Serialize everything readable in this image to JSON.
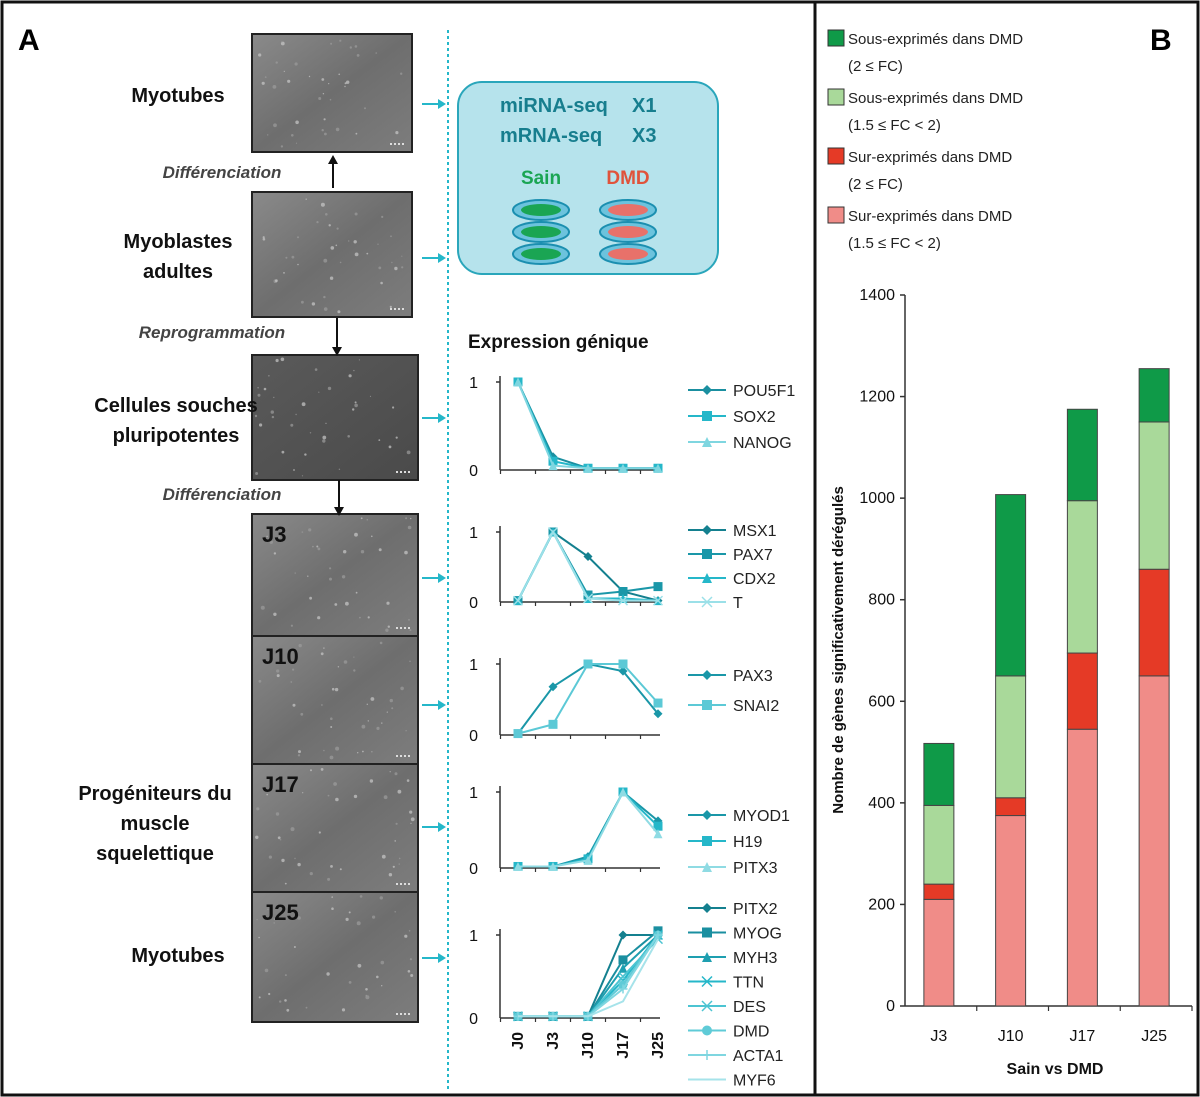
{
  "panel_a": {
    "letter": "A",
    "stages": [
      {
        "label": [
          "Myotubes"
        ],
        "tag": ""
      },
      {
        "label": [
          "Myoblastes",
          "adultes"
        ],
        "tag": ""
      },
      {
        "label": [
          "Cellules souches",
          "pluripotentes"
        ],
        "tag": ""
      },
      {
        "label": [],
        "tag": "J3"
      },
      {
        "label": [],
        "tag": "J10"
      },
      {
        "label": [
          "Progéniteurs du",
          "muscle",
          "squelettique"
        ],
        "tag": "J17"
      },
      {
        "label": [
          "Myotubes"
        ],
        "tag": "J25"
      }
    ],
    "transitions": [
      "Différenciation",
      "Reprogrammation",
      "Différenciation"
    ],
    "seq_box": {
      "line1_label": "miRNA-seq",
      "line1_mult": "X1",
      "line2_label": "mRNA-seq",
      "line2_mult": "X3",
      "sain": "Sain",
      "dmd": "DMD"
    },
    "expression_title": "Expression génique",
    "x_ticks": [
      "J0",
      "J3",
      "J10",
      "J17",
      "J25"
    ],
    "y_ticks": [
      "0",
      "1"
    ],
    "colors": {
      "teal_dark": "#1a8fa0",
      "teal": "#25b7c9",
      "teal_light": "#7fd6e0",
      "box_fill": "#b6e3ec",
      "box_stroke": "#2aa6bb",
      "sain": "#1aa553",
      "dmd": "#e0533b"
    }
  },
  "panel_b": {
    "letter": "B",
    "legend": [
      {
        "line1": "Sous-exprimés dans DMD",
        "line2": "(2 ≤ FC)",
        "color": "#0f9a48"
      },
      {
        "line1": "Sous-exprimés dans DMD",
        "line2": "(1.5 ≤ FC < 2)",
        "color": "#a9d99a"
      },
      {
        "line1": "Sur-exprimés dans DMD",
        "line2": "(2 ≤ FC)",
        "color": "#e53a26"
      },
      {
        "line1": "Sur-exprimés dans DMD",
        "line2": "(1.5 ≤ FC < 2)",
        "color": "#f08c88"
      }
    ]
  },
  "chart_data": [
    {
      "type": "line",
      "title": "",
      "x": [
        "J0",
        "J3",
        "J10",
        "J17",
        "J25"
      ],
      "ylim": [
        0,
        1
      ],
      "series": [
        {
          "name": "POU5F1",
          "values": [
            1,
            0.15,
            0.02,
            0.02,
            0.02
          ]
        },
        {
          "name": "SOX2",
          "values": [
            1,
            0.1,
            0.02,
            0.02,
            0.02
          ]
        },
        {
          "name": "NANOG",
          "values": [
            1,
            0.05,
            0.02,
            0.02,
            0.02
          ]
        }
      ]
    },
    {
      "type": "line",
      "title": "",
      "x": [
        "J0",
        "J3",
        "J10",
        "J17",
        "J25"
      ],
      "ylim": [
        0,
        1
      ],
      "series": [
        {
          "name": "MSX1",
          "values": [
            0.02,
            1,
            0.65,
            0.15,
            0.02
          ]
        },
        {
          "name": "PAX7",
          "values": [
            0.02,
            1,
            0.1,
            0.15,
            0.22
          ]
        },
        {
          "name": "CDX2",
          "values": [
            0.02,
            1,
            0.05,
            0.05,
            0.02
          ]
        },
        {
          "name": "T",
          "values": [
            0.02,
            1,
            0.05,
            0.02,
            0.02
          ]
        }
      ]
    },
    {
      "type": "line",
      "title": "",
      "x": [
        "J0",
        "J3",
        "J10",
        "J17",
        "J25"
      ],
      "ylim": [
        0,
        1
      ],
      "series": [
        {
          "name": "PAX3",
          "values": [
            0.02,
            0.68,
            1,
            0.9,
            0.3
          ]
        },
        {
          "name": "SNAI2",
          "values": [
            0.02,
            0.15,
            1,
            1,
            0.45
          ]
        }
      ]
    },
    {
      "type": "line",
      "title": "",
      "x": [
        "J0",
        "J3",
        "J10",
        "J17",
        "J25"
      ],
      "ylim": [
        0,
        1
      ],
      "series": [
        {
          "name": "MYOD1",
          "values": [
            0.02,
            0.02,
            0.15,
            1,
            0.62
          ]
        },
        {
          "name": "H19",
          "values": [
            0.02,
            0.02,
            0.12,
            1,
            0.55
          ]
        },
        {
          "name": "PITX3",
          "values": [
            0.02,
            0.02,
            0.1,
            1,
            0.45
          ]
        }
      ]
    },
    {
      "type": "line",
      "title": "",
      "x": [
        "J0",
        "J3",
        "J10",
        "J17",
        "J25"
      ],
      "ylim": [
        0,
        1
      ],
      "series": [
        {
          "name": "PITX2",
          "values": [
            0.02,
            0.02,
            0.02,
            1,
            1
          ]
        },
        {
          "name": "MYOG",
          "values": [
            0.02,
            0.02,
            0.02,
            0.7,
            1.05
          ]
        },
        {
          "name": "MYH3",
          "values": [
            0.02,
            0.02,
            0.02,
            0.6,
            1
          ]
        },
        {
          "name": "TTN",
          "values": [
            0.02,
            0.02,
            0.02,
            0.45,
            1
          ]
        },
        {
          "name": "DES",
          "values": [
            0.02,
            0.02,
            0.02,
            0.5,
            0.95
          ]
        },
        {
          "name": "DMD",
          "values": [
            0.02,
            0.02,
            0.02,
            0.4,
            1
          ]
        },
        {
          "name": "ACTA1",
          "values": [
            0.02,
            0.02,
            0.02,
            0.35,
            1
          ]
        },
        {
          "name": "MYF6",
          "values": [
            0.02,
            0.02,
            0.02,
            0.2,
            0.95
          ]
        }
      ]
    },
    {
      "type": "bar",
      "title": "",
      "categories": [
        "J3",
        "J10",
        "J17",
        "J25"
      ],
      "xlabel": "Sain vs DMD",
      "ylabel": "Nombre de gènes significativement dérégulés",
      "ylim": [
        0,
        1400
      ],
      "yticks": [
        0,
        200,
        400,
        600,
        800,
        1000,
        1200,
        1400
      ],
      "stacked": true,
      "series": [
        {
          "name": "Sur-exprimés dans DMD (1.5 ≤ FC < 2)",
          "values": [
            210,
            375,
            545,
            650
          ]
        },
        {
          "name": "Sur-exprimés dans DMD (2 ≤ FC)",
          "values": [
            30,
            35,
            150,
            210
          ]
        },
        {
          "name": "Sous-exprimés dans DMD (1.5 ≤ FC < 2)",
          "values": [
            155,
            240,
            300,
            290
          ]
        },
        {
          "name": "Sous-exprimés dans DMD (2 ≤ FC)",
          "values": [
            122,
            357,
            180,
            105
          ]
        }
      ]
    }
  ]
}
